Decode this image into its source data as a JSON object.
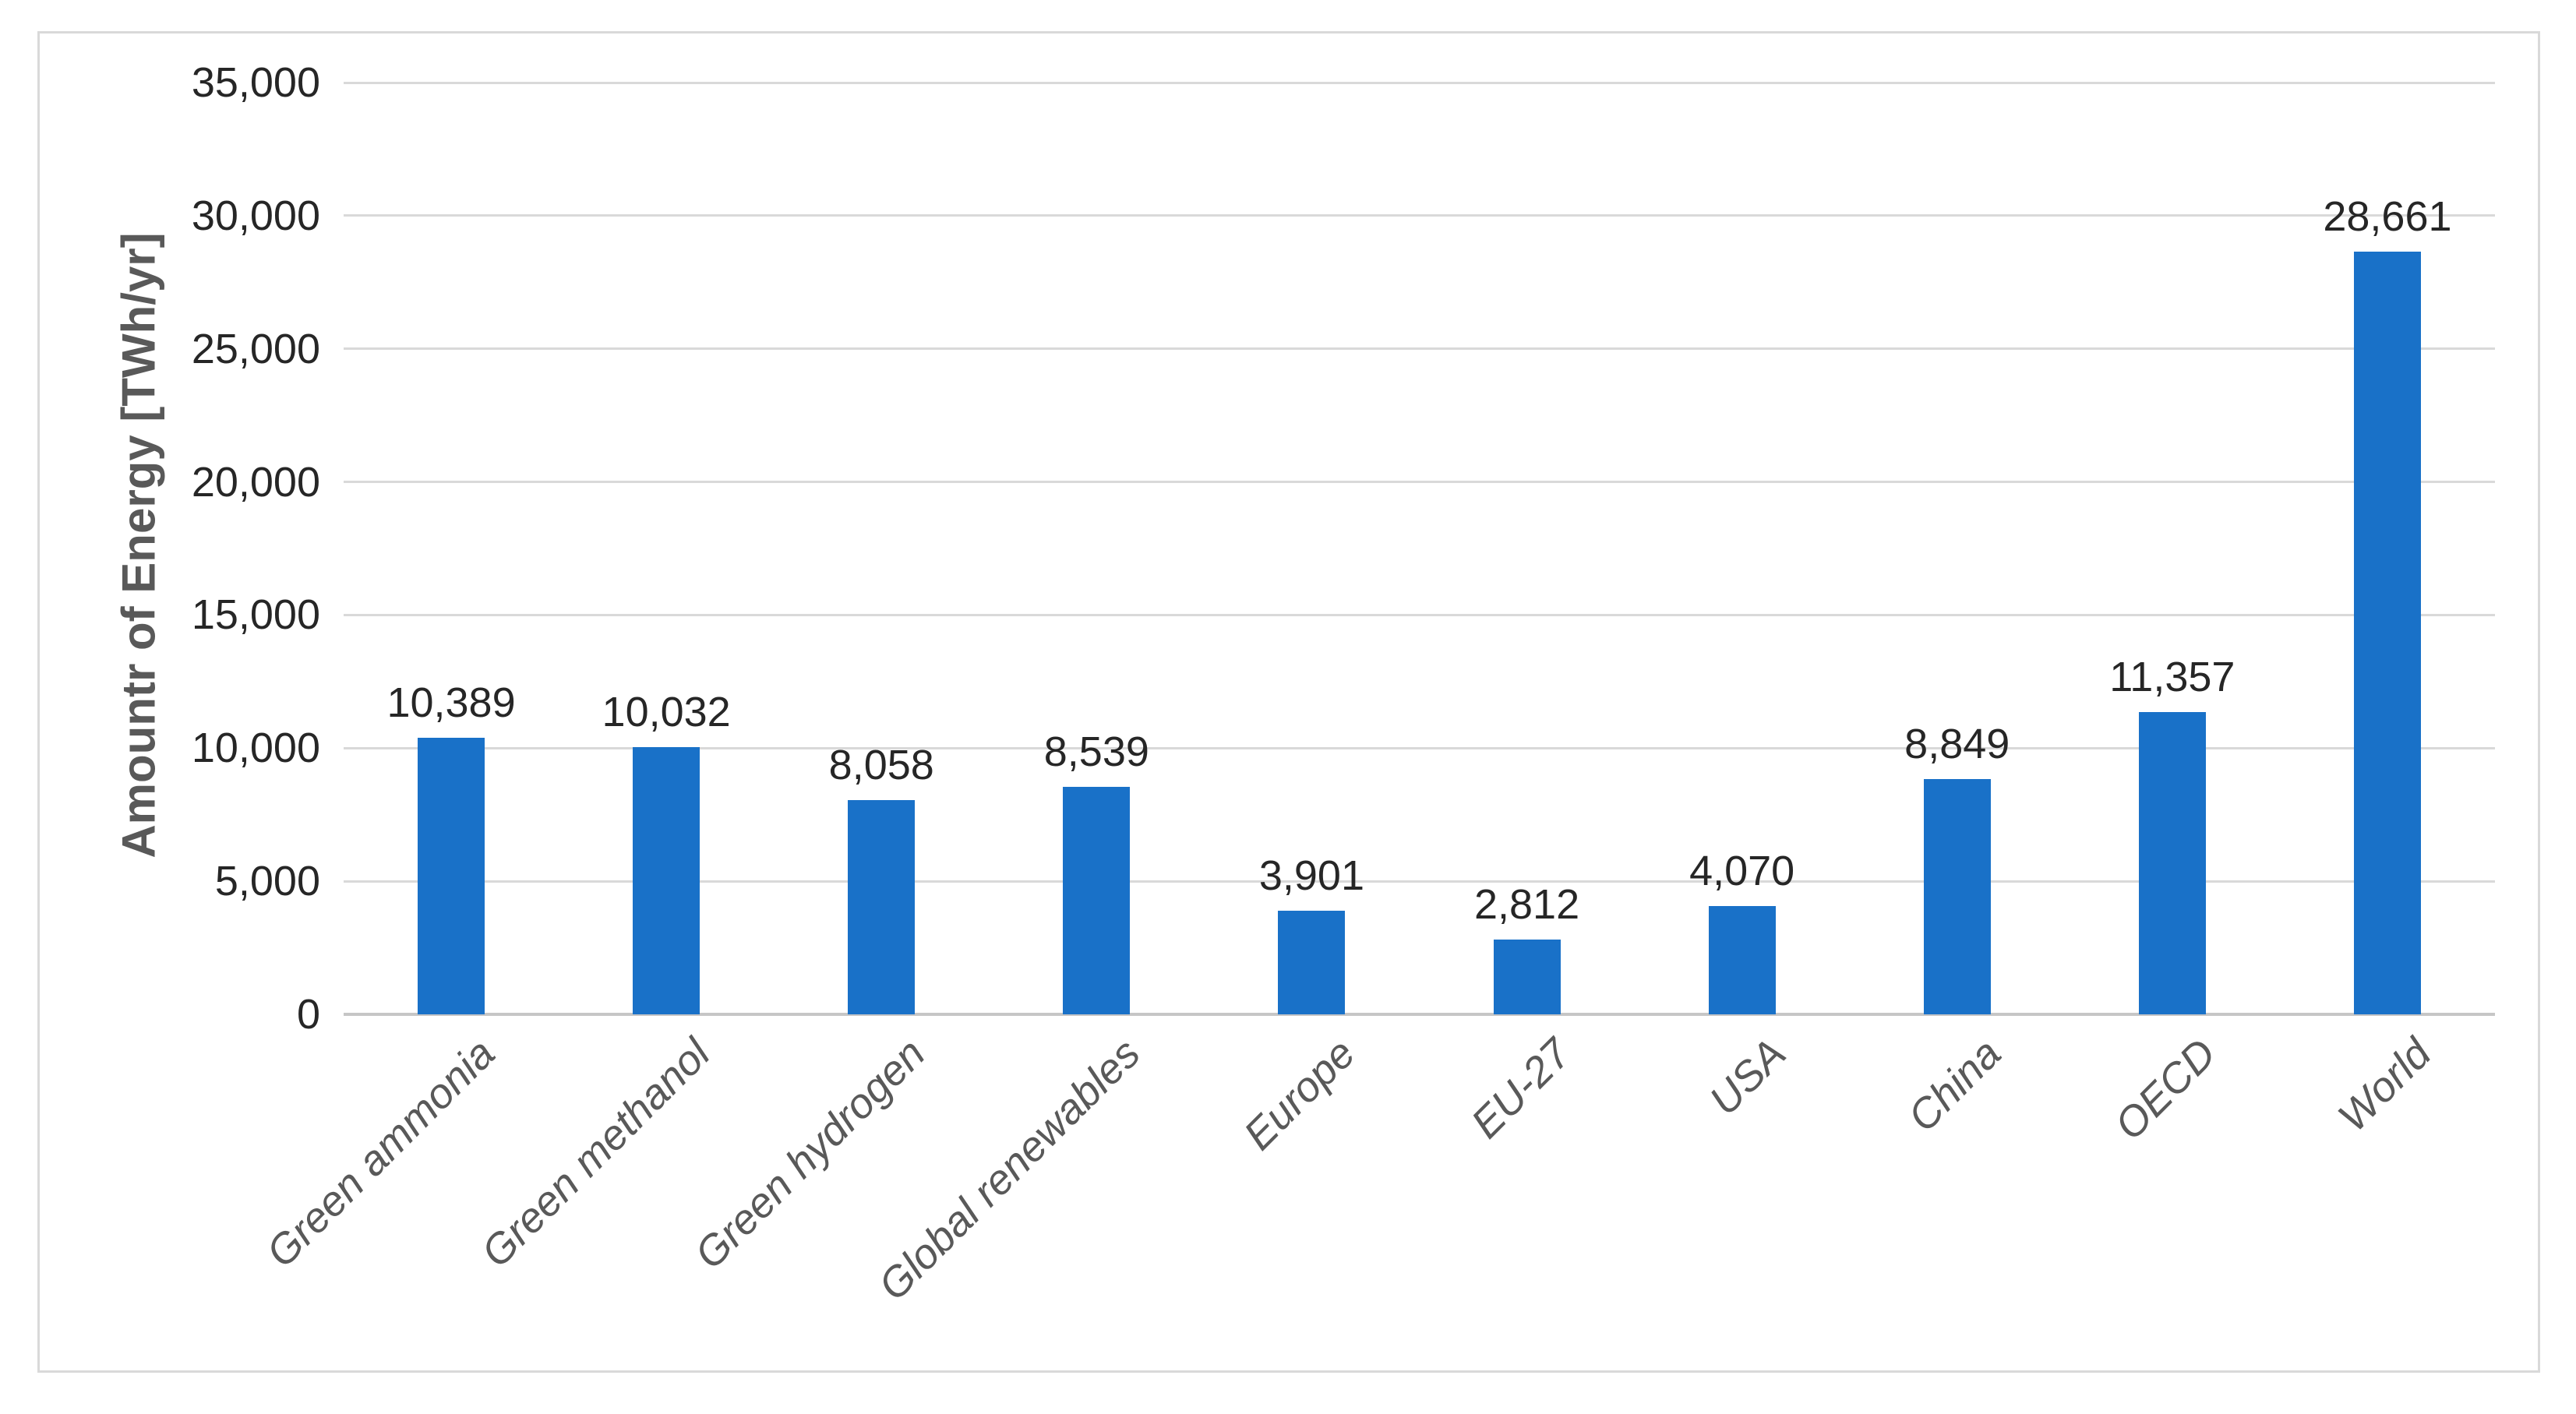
{
  "chart_data": {
    "type": "bar",
    "title": "",
    "xlabel": "",
    "ylabel": "Amountr of Energy [TWh/yr]",
    "categories": [
      "Green ammonia",
      "Green methanol",
      "Green hydrogen",
      "Global renewables",
      "Europe",
      "EU-27",
      "USA",
      "China",
      "OECD",
      "World"
    ],
    "values": [
      10389,
      10032,
      8058,
      8539,
      3901,
      2812,
      4070,
      8849,
      11357,
      28661
    ],
    "value_labels": [
      "10,389",
      "10,032",
      "8,058",
      "8,539",
      "3,901",
      "2,812",
      "4,070",
      "8,849",
      "11,357",
      "28,661"
    ],
    "ylim": [
      0,
      35000
    ],
    "ytick_interval": 5000,
    "ytick_labels": [
      "0",
      "5,000",
      "10,000",
      "15,000",
      "20,000",
      "25,000",
      "30,000",
      "35,000"
    ],
    "grid": "horizontal-only",
    "legend_position": "none",
    "category_label_rotation_deg": 45,
    "colors": {
      "bar_fill": "#1971c8",
      "gridline": "#d9d9d9",
      "axis_line": "#c6c6c6",
      "tick_label": "#262626",
      "data_label": "#262626",
      "category_label": "#595959",
      "y_axis_title": "#595959",
      "chart_border": "#d9d9d9",
      "background": "#ffffff"
    }
  }
}
